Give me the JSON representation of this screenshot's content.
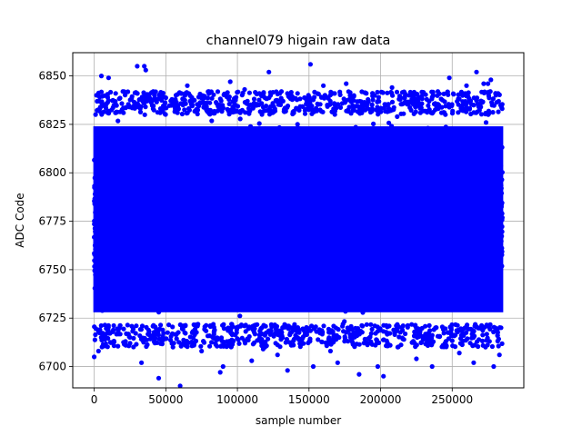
{
  "chart_data": {
    "type": "scatter",
    "title": "channel079 higain raw data",
    "xlabel": "sample number",
    "ylabel": "ADC Code",
    "xlim": [
      -15000,
      300000
    ],
    "ylim": [
      6689,
      6862
    ],
    "xticks": [
      0,
      50000,
      100000,
      150000,
      200000,
      250000
    ],
    "xtick_labels": [
      "0",
      "50000",
      "100000",
      "150000",
      "200000",
      "250000"
    ],
    "yticks": [
      6700,
      6725,
      6750,
      6775,
      6800,
      6825,
      6850
    ],
    "ytick_labels": [
      "6700",
      "6725",
      "6750",
      "6775",
      "6800",
      "6825",
      "6850"
    ],
    "grid": true,
    "marker_color": "#0000ff",
    "series": [
      {
        "x_range": [
          0,
          285000
        ],
        "dense_band": [
          6722,
          6830
        ],
        "outliers": [
          [
            30000,
            6855
          ],
          [
            35000,
            6855
          ],
          [
            36000,
            6853
          ],
          [
            10000,
            6849
          ],
          [
            5000,
            6850
          ],
          [
            122000,
            6852
          ],
          [
            151000,
            6856
          ],
          [
            267000,
            6852
          ],
          [
            277000,
            6848
          ],
          [
            248000,
            6849
          ],
          [
            272000,
            6846
          ],
          [
            275000,
            6846
          ],
          [
            60000,
            6690
          ],
          [
            45000,
            6694
          ],
          [
            202000,
            6695
          ],
          [
            88000,
            6697
          ],
          [
            90000,
            6700
          ],
          [
            198000,
            6700
          ],
          [
            185000,
            6696
          ],
          [
            236000,
            6700
          ],
          [
            0,
            6705
          ],
          [
            3000,
            6708
          ],
          [
            33000,
            6702
          ],
          [
            279000,
            6700
          ],
          [
            265000,
            6702
          ],
          [
            135000,
            6698
          ],
          [
            153000,
            6700
          ],
          [
            110000,
            6703
          ],
          [
            170000,
            6702
          ],
          [
            225000,
            6704
          ],
          [
            15000,
            6841
          ],
          [
            20000,
            6842
          ],
          [
            42000,
            6840
          ],
          [
            65000,
            6845
          ],
          [
            80000,
            6842
          ],
          [
            95000,
            6847
          ],
          [
            105000,
            6843
          ],
          [
            142000,
            6841
          ],
          [
            160000,
            6845
          ],
          [
            176000,
            6846
          ],
          [
            190000,
            6841
          ],
          [
            208000,
            6844
          ],
          [
            220000,
            6840
          ],
          [
            240000,
            6842
          ],
          [
            260000,
            6845
          ],
          [
            282000,
            6841
          ],
          [
            25000,
            6712
          ],
          [
            55000,
            6710
          ],
          [
            75000,
            6708
          ],
          [
            118000,
            6709
          ],
          [
            128000,
            6706
          ],
          [
            165000,
            6708
          ],
          [
            212000,
            6710
          ],
          [
            245000,
            6712
          ],
          [
            255000,
            6707
          ],
          [
            283000,
            6706
          ]
        ]
      }
    ]
  }
}
